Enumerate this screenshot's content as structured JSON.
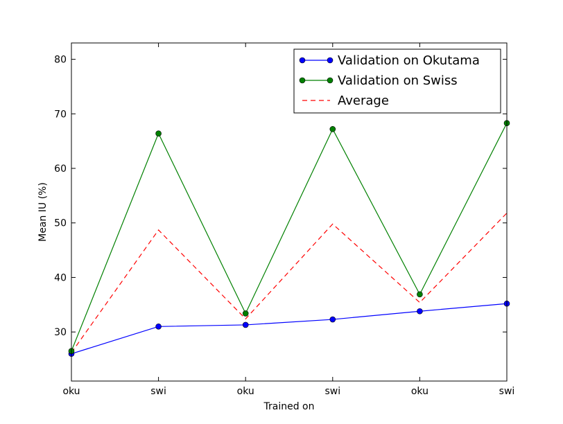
{
  "chart_data": {
    "type": "line",
    "title": "",
    "xlabel": "Trained on",
    "ylabel": "Mean IU (%)",
    "categories": [
      "oku",
      "swi",
      "oku",
      "swi",
      "oku",
      "swi"
    ],
    "ylim": [
      21,
      83
    ],
    "yticks": [
      30,
      40,
      50,
      60,
      70,
      80
    ],
    "grid": false,
    "legend_position": "top-right",
    "series": [
      {
        "name": "Validation on Okutama",
        "color": "#0000ff",
        "style": "solid",
        "marker": "circle",
        "values": [
          26.0,
          31.0,
          31.3,
          32.3,
          33.8,
          35.2
        ]
      },
      {
        "name": "Validation on Swiss",
        "color": "#008000",
        "style": "solid",
        "marker": "circle",
        "values": [
          26.5,
          66.4,
          33.4,
          67.2,
          36.9,
          68.3
        ]
      },
      {
        "name": "Average",
        "color": "#ff0000",
        "style": "dashed",
        "marker": "none",
        "values": [
          26.2,
          48.7,
          32.4,
          49.8,
          35.4,
          51.8
        ]
      }
    ]
  }
}
